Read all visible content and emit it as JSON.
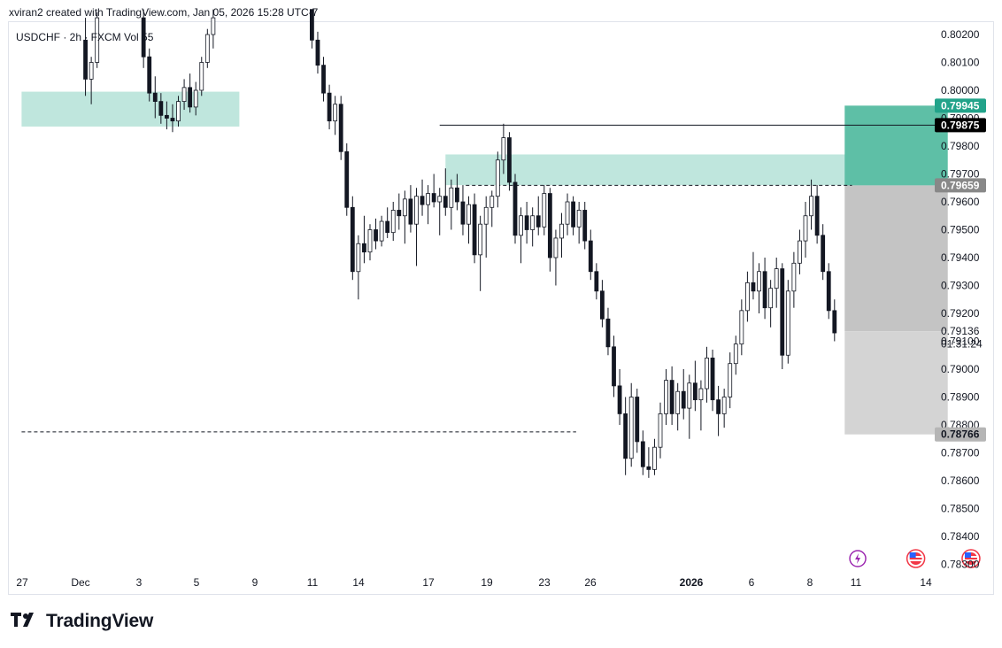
{
  "header": {
    "credit": "xviran2 created with TradingView.com, Jan 05, 2026 15:28 UTC-7"
  },
  "footer": {
    "brand": "TradingView"
  },
  "colors": {
    "bull": "#131722",
    "bear": "#131722",
    "zone": "#bfe6dd",
    "target": "#5ebfa6",
    "stop": "#c4c4c4",
    "stop_lower": "#d4d4d4",
    "label_green": "#22a38a",
    "label_black": "#000000",
    "label_gray": "#888888",
    "label_lightgray": "#b5b5b5"
  },
  "chart_data": {
    "type": "candlestick",
    "title": "",
    "legend": "USDCHF · 2h · FXCM Vol 55",
    "price_axis": {
      "ylim": [
        0.7825,
        0.8029
      ],
      "ticks": [
        "0.80200",
        "0.80100",
        "0.80000",
        "0.79900",
        "0.79800",
        "0.79700",
        "0.79600",
        "0.79500",
        "0.79400",
        "0.79300",
        "0.79200",
        "0.79100",
        "0.79000",
        "0.78900",
        "0.78800",
        "0.78700",
        "0.78600",
        "0.78500",
        "0.78400",
        "0.78300"
      ]
    },
    "time_axis": {
      "labels": [
        "27",
        "Dec",
        "3",
        "5",
        "9",
        "11",
        "14",
        "17",
        "19",
        "23",
        "26",
        "2026",
        "6",
        "8",
        "11",
        "14"
      ],
      "bold": [
        "2026"
      ]
    },
    "price_labels": [
      {
        "text": "0.79945",
        "value": 0.79945,
        "style": "green"
      },
      {
        "text": "0.79875",
        "value": 0.79875,
        "style": "black"
      },
      {
        "text": "0.79659",
        "value": 0.79659,
        "style": "gray"
      },
      {
        "text": "0.79136",
        "value": 0.79136,
        "style": "plain"
      },
      {
        "text": "01:31:24",
        "value": 0.7909,
        "style": "plain"
      },
      {
        "text": "0.78766",
        "value": 0.78766,
        "style": "lightgray"
      }
    ],
    "supply_zones": [
      {
        "from_day": 0.0,
        "to_day": 7.5,
        "top": 0.79995,
        "bottom": 0.7987
      },
      {
        "from_day": 14.6,
        "to_day": 28.6,
        "top": 0.7977,
        "bottom": 0.7966
      }
    ],
    "horizontal_lines": [
      {
        "value": 0.79875,
        "from_day": 14.4,
        "to_day": 39.0,
        "style": "solid"
      },
      {
        "value": 0.79659,
        "from_day": 15.3,
        "to_day": 28.6,
        "style": "dashed"
      },
      {
        "value": 0.78775,
        "from_day": 0.0,
        "to_day": 19.1,
        "style": "dashed"
      }
    ],
    "position": {
      "from_day": 28.35,
      "to_day": 31.9,
      "entry": 0.79659,
      "target": 0.79945,
      "stop": 0.78766,
      "current": 0.79136
    },
    "events": [
      {
        "day": 28.8,
        "icon": "lightning-icon"
      },
      {
        "day": 30.8,
        "icon": "us-flag-icon"
      },
      {
        "day": 32.7,
        "icon": "us-flag-icon"
      }
    ],
    "candles": [
      {
        "d": 2.2,
        "o": 0.8018,
        "h": 0.8026,
        "l": 0.7998,
        "c": 0.8004
      },
      {
        "d": 2.4,
        "o": 0.8004,
        "h": 0.8012,
        "l": 0.7995,
        "c": 0.801
      },
      {
        "d": 2.6,
        "o": 0.801,
        "h": 0.8028,
        "l": 0.8008,
        "c": 0.8026
      },
      {
        "d": 4.2,
        "o": 0.8026,
        "h": 0.8029,
        "l": 0.8008,
        "c": 0.8012
      },
      {
        "d": 4.4,
        "o": 0.8012,
        "h": 0.8015,
        "l": 0.7996,
        "c": 0.7999
      },
      {
        "d": 4.6,
        "o": 0.7999,
        "h": 0.8005,
        "l": 0.799,
        "c": 0.7996
      },
      {
        "d": 4.8,
        "o": 0.7996,
        "h": 0.7999,
        "l": 0.7988,
        "c": 0.7991
      },
      {
        "d": 5.0,
        "o": 0.7991,
        "h": 0.7996,
        "l": 0.7986,
        "c": 0.799
      },
      {
        "d": 5.2,
        "o": 0.799,
        "h": 0.7995,
        "l": 0.7985,
        "c": 0.7989
      },
      {
        "d": 5.4,
        "o": 0.7989,
        "h": 0.7998,
        "l": 0.7987,
        "c": 0.7996
      },
      {
        "d": 5.6,
        "o": 0.7996,
        "h": 0.8004,
        "l": 0.7993,
        "c": 0.8001
      },
      {
        "d": 5.8,
        "o": 0.8001,
        "h": 0.8006,
        "l": 0.7992,
        "c": 0.7994
      },
      {
        "d": 6.0,
        "o": 0.7994,
        "h": 0.8003,
        "l": 0.7991,
        "c": 0.8
      },
      {
        "d": 6.2,
        "o": 0.8,
        "h": 0.8012,
        "l": 0.7998,
        "c": 0.801
      },
      {
        "d": 6.4,
        "o": 0.801,
        "h": 0.8022,
        "l": 0.8008,
        "c": 0.802
      },
      {
        "d": 6.6,
        "o": 0.802,
        "h": 0.8029,
        "l": 0.8015,
        "c": 0.8026
      },
      {
        "d": 10.0,
        "o": 0.8029,
        "h": 0.8029,
        "l": 0.8015,
        "c": 0.8018
      },
      {
        "d": 10.2,
        "o": 0.8018,
        "h": 0.8021,
        "l": 0.8006,
        "c": 0.8009
      },
      {
        "d": 10.4,
        "o": 0.8009,
        "h": 0.8012,
        "l": 0.7996,
        "c": 0.7999
      },
      {
        "d": 10.6,
        "o": 0.7999,
        "h": 0.8002,
        "l": 0.7986,
        "c": 0.7989
      },
      {
        "d": 10.8,
        "o": 0.7989,
        "h": 0.7998,
        "l": 0.7984,
        "c": 0.7995
      },
      {
        "d": 11.0,
        "o": 0.7995,
        "h": 0.7998,
        "l": 0.7975,
        "c": 0.7978
      },
      {
        "d": 11.2,
        "o": 0.7978,
        "h": 0.7981,
        "l": 0.7955,
        "c": 0.7958
      },
      {
        "d": 11.4,
        "o": 0.7958,
        "h": 0.7962,
        "l": 0.7932,
        "c": 0.7935
      },
      {
        "d": 11.6,
        "o": 0.7935,
        "h": 0.7948,
        "l": 0.7925,
        "c": 0.7945
      },
      {
        "d": 11.8,
        "o": 0.7945,
        "h": 0.7955,
        "l": 0.7938,
        "c": 0.7942
      },
      {
        "d": 12.0,
        "o": 0.7942,
        "h": 0.7952,
        "l": 0.7939,
        "c": 0.795
      },
      {
        "d": 12.2,
        "o": 0.795,
        "h": 0.7954,
        "l": 0.7943,
        "c": 0.7946
      },
      {
        "d": 12.4,
        "o": 0.7946,
        "h": 0.7955,
        "l": 0.7944,
        "c": 0.7953
      },
      {
        "d": 12.6,
        "o": 0.7953,
        "h": 0.7958,
        "l": 0.7947,
        "c": 0.7949
      },
      {
        "d": 12.8,
        "o": 0.7949,
        "h": 0.796,
        "l": 0.7946,
        "c": 0.7957
      },
      {
        "d": 13.0,
        "o": 0.7957,
        "h": 0.7963,
        "l": 0.795,
        "c": 0.7955
      },
      {
        "d": 13.2,
        "o": 0.7955,
        "h": 0.7964,
        "l": 0.7945,
        "c": 0.7961
      },
      {
        "d": 13.4,
        "o": 0.7961,
        "h": 0.7966,
        "l": 0.7949,
        "c": 0.7952
      },
      {
        "d": 13.6,
        "o": 0.7952,
        "h": 0.7965,
        "l": 0.7937,
        "c": 0.7962
      },
      {
        "d": 13.8,
        "o": 0.7962,
        "h": 0.7968,
        "l": 0.7955,
        "c": 0.7959
      },
      {
        "d": 14.0,
        "o": 0.7959,
        "h": 0.7966,
        "l": 0.7952,
        "c": 0.7963
      },
      {
        "d": 14.2,
        "o": 0.7963,
        "h": 0.797,
        "l": 0.7958,
        "c": 0.796
      },
      {
        "d": 14.4,
        "o": 0.796,
        "h": 0.7965,
        "l": 0.7948,
        "c": 0.7962
      },
      {
        "d": 14.6,
        "o": 0.7962,
        "h": 0.7972,
        "l": 0.7955,
        "c": 0.7958
      },
      {
        "d": 14.8,
        "o": 0.7958,
        "h": 0.7968,
        "l": 0.795,
        "c": 0.7965
      },
      {
        "d": 15.0,
        "o": 0.7965,
        "h": 0.797,
        "l": 0.7957,
        "c": 0.796
      },
      {
        "d": 15.2,
        "o": 0.796,
        "h": 0.7966,
        "l": 0.7948,
        "c": 0.7952
      },
      {
        "d": 15.4,
        "o": 0.7952,
        "h": 0.7962,
        "l": 0.7945,
        "c": 0.7959
      },
      {
        "d": 15.6,
        "o": 0.7959,
        "h": 0.7963,
        "l": 0.7938,
        "c": 0.7941
      },
      {
        "d": 15.8,
        "o": 0.7941,
        "h": 0.7955,
        "l": 0.7928,
        "c": 0.7952
      },
      {
        "d": 16.0,
        "o": 0.7952,
        "h": 0.7962,
        "l": 0.794,
        "c": 0.7958
      },
      {
        "d": 16.2,
        "o": 0.7958,
        "h": 0.7964,
        "l": 0.7951,
        "c": 0.7962
      },
      {
        "d": 16.4,
        "o": 0.7962,
        "h": 0.7978,
        "l": 0.7958,
        "c": 0.7975
      },
      {
        "d": 16.6,
        "o": 0.7975,
        "h": 0.7988,
        "l": 0.797,
        "c": 0.7983
      },
      {
        "d": 16.8,
        "o": 0.7983,
        "h": 0.7985,
        "l": 0.7964,
        "c": 0.7967
      },
      {
        "d": 17.0,
        "o": 0.7967,
        "h": 0.797,
        "l": 0.7945,
        "c": 0.7948
      },
      {
        "d": 17.2,
        "o": 0.7948,
        "h": 0.7958,
        "l": 0.7938,
        "c": 0.7955
      },
      {
        "d": 17.4,
        "o": 0.7955,
        "h": 0.796,
        "l": 0.7945,
        "c": 0.795
      },
      {
        "d": 17.6,
        "o": 0.795,
        "h": 0.7958,
        "l": 0.7944,
        "c": 0.7955
      },
      {
        "d": 17.8,
        "o": 0.7955,
        "h": 0.7962,
        "l": 0.7948,
        "c": 0.7951
      },
      {
        "d": 18.0,
        "o": 0.7951,
        "h": 0.7966,
        "l": 0.7948,
        "c": 0.7963
      },
      {
        "d": 18.2,
        "o": 0.7963,
        "h": 0.7965,
        "l": 0.7935,
        "c": 0.794
      },
      {
        "d": 18.4,
        "o": 0.794,
        "h": 0.795,
        "l": 0.793,
        "c": 0.7947
      },
      {
        "d": 18.6,
        "o": 0.7947,
        "h": 0.7956,
        "l": 0.794,
        "c": 0.7952
      },
      {
        "d": 18.8,
        "o": 0.7952,
        "h": 0.7963,
        "l": 0.7948,
        "c": 0.796
      },
      {
        "d": 19.0,
        "o": 0.796,
        "h": 0.7962,
        "l": 0.7948,
        "c": 0.7951
      },
      {
        "d": 19.2,
        "o": 0.7951,
        "h": 0.796,
        "l": 0.7945,
        "c": 0.7957
      },
      {
        "d": 19.4,
        "o": 0.7957,
        "h": 0.796,
        "l": 0.7943,
        "c": 0.7946
      },
      {
        "d": 19.6,
        "o": 0.7946,
        "h": 0.795,
        "l": 0.7932,
        "c": 0.7935
      },
      {
        "d": 19.8,
        "o": 0.7935,
        "h": 0.7938,
        "l": 0.7925,
        "c": 0.7928
      },
      {
        "d": 20.0,
        "o": 0.7928,
        "h": 0.7932,
        "l": 0.7915,
        "c": 0.7918
      },
      {
        "d": 20.2,
        "o": 0.7918,
        "h": 0.7922,
        "l": 0.7905,
        "c": 0.7908
      },
      {
        "d": 20.4,
        "o": 0.7908,
        "h": 0.7912,
        "l": 0.789,
        "c": 0.7894
      },
      {
        "d": 20.6,
        "o": 0.7894,
        "h": 0.79,
        "l": 0.788,
        "c": 0.7884
      },
      {
        "d": 20.8,
        "o": 0.7884,
        "h": 0.789,
        "l": 0.7862,
        "c": 0.7868
      },
      {
        "d": 21.0,
        "o": 0.7868,
        "h": 0.7895,
        "l": 0.7865,
        "c": 0.789
      },
      {
        "d": 21.2,
        "o": 0.789,
        "h": 0.7893,
        "l": 0.787,
        "c": 0.7874
      },
      {
        "d": 21.4,
        "o": 0.7874,
        "h": 0.7878,
        "l": 0.7862,
        "c": 0.7865
      },
      {
        "d": 21.6,
        "o": 0.7865,
        "h": 0.7872,
        "l": 0.7861,
        "c": 0.7864
      },
      {
        "d": 21.8,
        "o": 0.7864,
        "h": 0.7875,
        "l": 0.7862,
        "c": 0.7872
      },
      {
        "d": 22.0,
        "o": 0.7872,
        "h": 0.7888,
        "l": 0.7868,
        "c": 0.7884
      },
      {
        "d": 22.2,
        "o": 0.7884,
        "h": 0.79,
        "l": 0.788,
        "c": 0.7896
      },
      {
        "d": 22.4,
        "o": 0.7896,
        "h": 0.7901,
        "l": 0.788,
        "c": 0.7884
      },
      {
        "d": 22.6,
        "o": 0.7884,
        "h": 0.7895,
        "l": 0.7878,
        "c": 0.7892
      },
      {
        "d": 22.8,
        "o": 0.7892,
        "h": 0.79,
        "l": 0.7882,
        "c": 0.7886
      },
      {
        "d": 23.0,
        "o": 0.7886,
        "h": 0.7898,
        "l": 0.7875,
        "c": 0.7895
      },
      {
        "d": 23.2,
        "o": 0.7895,
        "h": 0.7903,
        "l": 0.7885,
        "c": 0.7889
      },
      {
        "d": 23.4,
        "o": 0.7889,
        "h": 0.7896,
        "l": 0.7878,
        "c": 0.7893
      },
      {
        "d": 23.6,
        "o": 0.7893,
        "h": 0.7908,
        "l": 0.7888,
        "c": 0.7904
      },
      {
        "d": 23.8,
        "o": 0.7904,
        "h": 0.7907,
        "l": 0.7885,
        "c": 0.7889
      },
      {
        "d": 24.0,
        "o": 0.7889,
        "h": 0.7894,
        "l": 0.7876,
        "c": 0.7884
      },
      {
        "d": 24.2,
        "o": 0.7884,
        "h": 0.7893,
        "l": 0.7879,
        "c": 0.789
      },
      {
        "d": 24.4,
        "o": 0.789,
        "h": 0.7906,
        "l": 0.7886,
        "c": 0.7902
      },
      {
        "d": 24.6,
        "o": 0.7902,
        "h": 0.7912,
        "l": 0.7898,
        "c": 0.7909
      },
      {
        "d": 24.8,
        "o": 0.7909,
        "h": 0.7925,
        "l": 0.7905,
        "c": 0.7921
      },
      {
        "d": 25.0,
        "o": 0.7921,
        "h": 0.7935,
        "l": 0.7917,
        "c": 0.7931
      },
      {
        "d": 25.2,
        "o": 0.7931,
        "h": 0.7942,
        "l": 0.7925,
        "c": 0.7928
      },
      {
        "d": 25.4,
        "o": 0.7928,
        "h": 0.7938,
        "l": 0.792,
        "c": 0.7935
      },
      {
        "d": 25.6,
        "o": 0.7935,
        "h": 0.794,
        "l": 0.7918,
        "c": 0.7922
      },
      {
        "d": 25.8,
        "o": 0.7922,
        "h": 0.7932,
        "l": 0.7915,
        "c": 0.7929
      },
      {
        "d": 26.0,
        "o": 0.7929,
        "h": 0.794,
        "l": 0.7922,
        "c": 0.7936
      },
      {
        "d": 26.2,
        "o": 0.7936,
        "h": 0.7938,
        "l": 0.79,
        "c": 0.7905
      },
      {
        "d": 26.4,
        "o": 0.7905,
        "h": 0.7932,
        "l": 0.7902,
        "c": 0.7928
      },
      {
        "d": 26.6,
        "o": 0.7928,
        "h": 0.7942,
        "l": 0.7922,
        "c": 0.7938
      },
      {
        "d": 26.8,
        "o": 0.7938,
        "h": 0.795,
        "l": 0.7934,
        "c": 0.7946
      },
      {
        "d": 27.0,
        "o": 0.7946,
        "h": 0.796,
        "l": 0.794,
        "c": 0.7955
      },
      {
        "d": 27.2,
        "o": 0.7955,
        "h": 0.7968,
        "l": 0.795,
        "c": 0.7962
      },
      {
        "d": 27.4,
        "o": 0.7962,
        "h": 0.7966,
        "l": 0.7945,
        "c": 0.7948
      },
      {
        "d": 27.6,
        "o": 0.7948,
        "h": 0.7952,
        "l": 0.7932,
        "c": 0.7935
      },
      {
        "d": 27.8,
        "o": 0.7935,
        "h": 0.7938,
        "l": 0.7918,
        "c": 0.7921
      },
      {
        "d": 28.0,
        "o": 0.7921,
        "h": 0.7925,
        "l": 0.791,
        "c": 0.7913
      }
    ]
  }
}
